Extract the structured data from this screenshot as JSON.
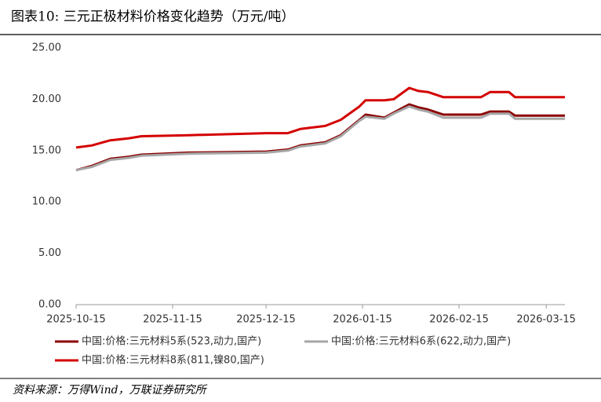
{
  "chart_data": {
    "type": "line",
    "title": "图表10: 三元正极材料价格变化趋势（万元/吨）",
    "source": "资料来源：万得Wind，万联证券研究所",
    "x": [
      "2025-10-15",
      "2025-10-20",
      "2025-10-26",
      "2025-11-01",
      "2025-11-05",
      "2025-11-20",
      "2025-12-15",
      "2025-12-22",
      "2025-12-26",
      "2026-01-03",
      "2026-01-08",
      "2026-01-14",
      "2026-01-16",
      "2026-01-22",
      "2026-01-25",
      "2026-01-30",
      "2026-02-02",
      "2026-02-05",
      "2026-02-10",
      "2026-02-22",
      "2026-02-25",
      "2026-03-03",
      "2026-03-05",
      "2026-03-21"
    ],
    "series": [
      {
        "name": "中国:价格:三元材料5系(523,动力,国产)",
        "color": "#8b0000",
        "values": [
          13.1,
          13.5,
          14.2,
          14.4,
          14.6,
          14.8,
          14.9,
          15.1,
          15.5,
          15.8,
          16.5,
          18.0,
          18.5,
          18.2,
          18.7,
          19.5,
          19.2,
          19.0,
          18.5,
          18.5,
          18.8,
          18.8,
          18.4,
          18.4
        ]
      },
      {
        "name": "中国:价格:三元材料6系(622,动力,国产)",
        "color": "#a6a6a6",
        "values": [
          13.1,
          13.4,
          14.1,
          14.3,
          14.5,
          14.7,
          14.8,
          15.0,
          15.4,
          15.7,
          16.4,
          17.9,
          18.3,
          18.1,
          18.6,
          19.3,
          19.0,
          18.8,
          18.2,
          18.2,
          18.6,
          18.6,
          18.1,
          18.1
        ]
      },
      {
        "name": "中国:价格:三元材料8系(811,镍80,国产)",
        "color": "#d40000",
        "values": [
          15.3,
          15.5,
          16.0,
          16.2,
          16.4,
          16.5,
          16.7,
          16.7,
          17.1,
          17.4,
          18.0,
          19.3,
          19.9,
          19.9,
          20.0,
          21.1,
          20.8,
          20.7,
          20.2,
          20.2,
          20.7,
          20.7,
          20.2,
          20.2
        ]
      }
    ],
    "xlim": [
      "2025-10-15",
      "2026-03-21"
    ],
    "xticks": [
      "2025-10-15",
      "2025-11-15",
      "2025-12-15",
      "2026-01-15",
      "2026-02-15",
      "2026-03-15"
    ],
    "ylim": [
      0,
      25
    ],
    "yticks": [
      {
        "value": 0,
        "label": "0.00"
      },
      {
        "value": 5,
        "label": "5.00"
      },
      {
        "value": 10,
        "label": "10.00"
      },
      {
        "value": 15,
        "label": "15.00"
      },
      {
        "value": 20,
        "label": "20.00"
      },
      {
        "value": 25,
        "label": "25.00"
      }
    ],
    "grid": false
  }
}
